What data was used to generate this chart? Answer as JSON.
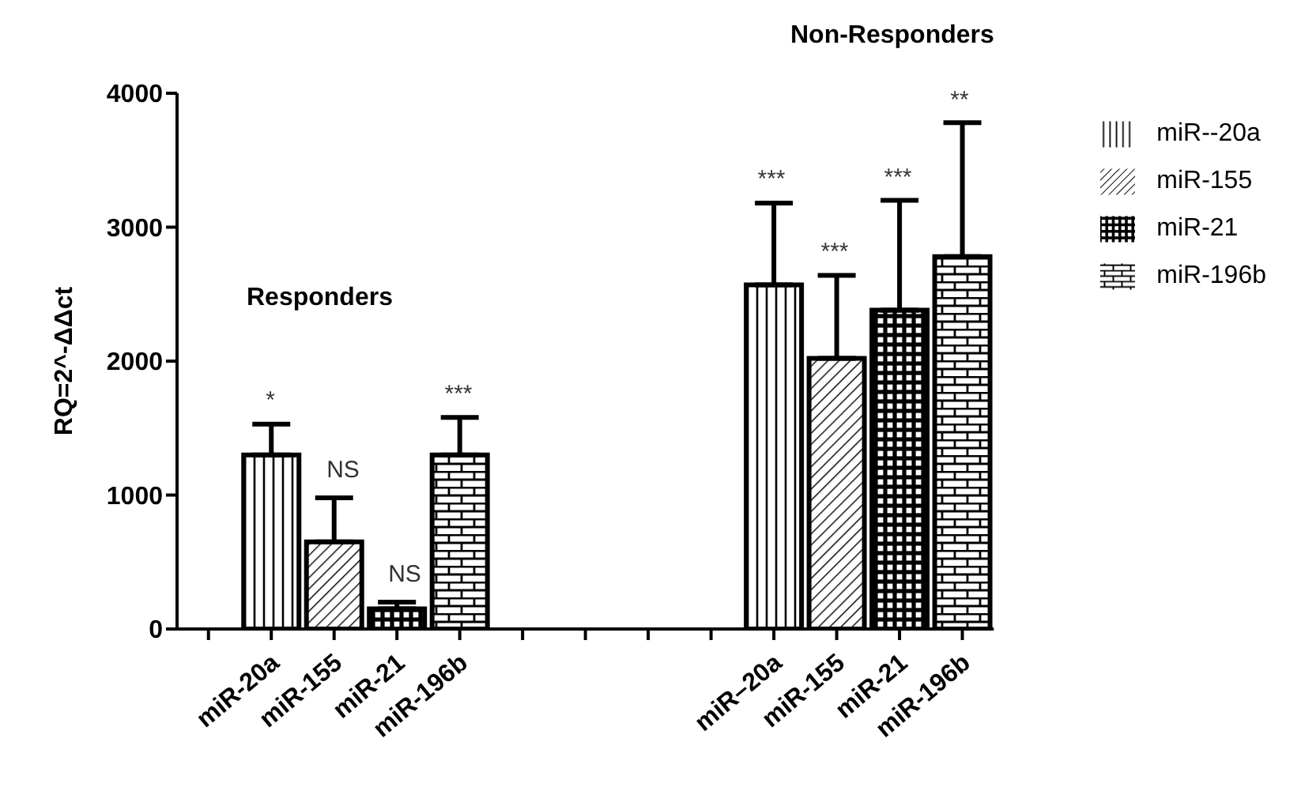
{
  "chart_data": {
    "type": "bar",
    "ylabel": "RQ=2^-ΔΔct",
    "annotations": [
      "Responders",
      "Non-Responders",
      "*",
      "NS",
      "NS",
      "***",
      "***",
      "***",
      "***",
      "**"
    ],
    "categories": [
      null,
      "miR-20a",
      "miR-155",
      "miR-21",
      "miR-196b",
      null,
      null,
      null,
      null,
      "miR–20a",
      "miR-155",
      "miR-21",
      "miR-196b"
    ],
    "series": [
      {
        "name": "miR--20a",
        "color": "#000000",
        "values": [
          null,
          1300,
          null,
          null,
          null,
          null,
          null,
          null,
          null,
          2570,
          null,
          null,
          null
        ],
        "errors": [
          null,
          [
            1300,
            1530
          ],
          null,
          null,
          null,
          null,
          null,
          null,
          null,
          [
            2570,
            3180
          ],
          null,
          null,
          null
        ]
      },
      {
        "name": "miR-155",
        "color": "#000000",
        "values": [
          null,
          null,
          650,
          null,
          null,
          null,
          null,
          null,
          null,
          null,
          2020,
          null,
          null
        ],
        "errors": [
          null,
          null,
          [
            650,
            980
          ],
          null,
          null,
          null,
          null,
          null,
          null,
          null,
          [
            2020,
            2640
          ],
          null,
          null
        ]
      },
      {
        "name": "miR-21",
        "color": "#000000",
        "values": [
          null,
          null,
          null,
          150,
          null,
          null,
          null,
          null,
          null,
          null,
          null,
          2380,
          null
        ],
        "errors": [
          null,
          null,
          null,
          [
            150,
            200
          ],
          null,
          null,
          null,
          null,
          null,
          null,
          null,
          [
            2380,
            3200
          ],
          null
        ]
      },
      {
        "name": "miR-196b",
        "color": "#000000",
        "values": [
          null,
          null,
          null,
          null,
          1300,
          null,
          null,
          null,
          null,
          null,
          null,
          null,
          2780
        ],
        "errors": [
          null,
          null,
          null,
          null,
          [
            1300,
            1580
          ],
          null,
          null,
          null,
          null,
          null,
          null,
          null,
          [
            2780,
            3780
          ]
        ]
      }
    ],
    "ylim": [
      0,
      4000
    ],
    "yticks": [
      0,
      1000,
      2000,
      3000,
      4000
    ],
    "grid": false,
    "legend": "top right"
  }
}
